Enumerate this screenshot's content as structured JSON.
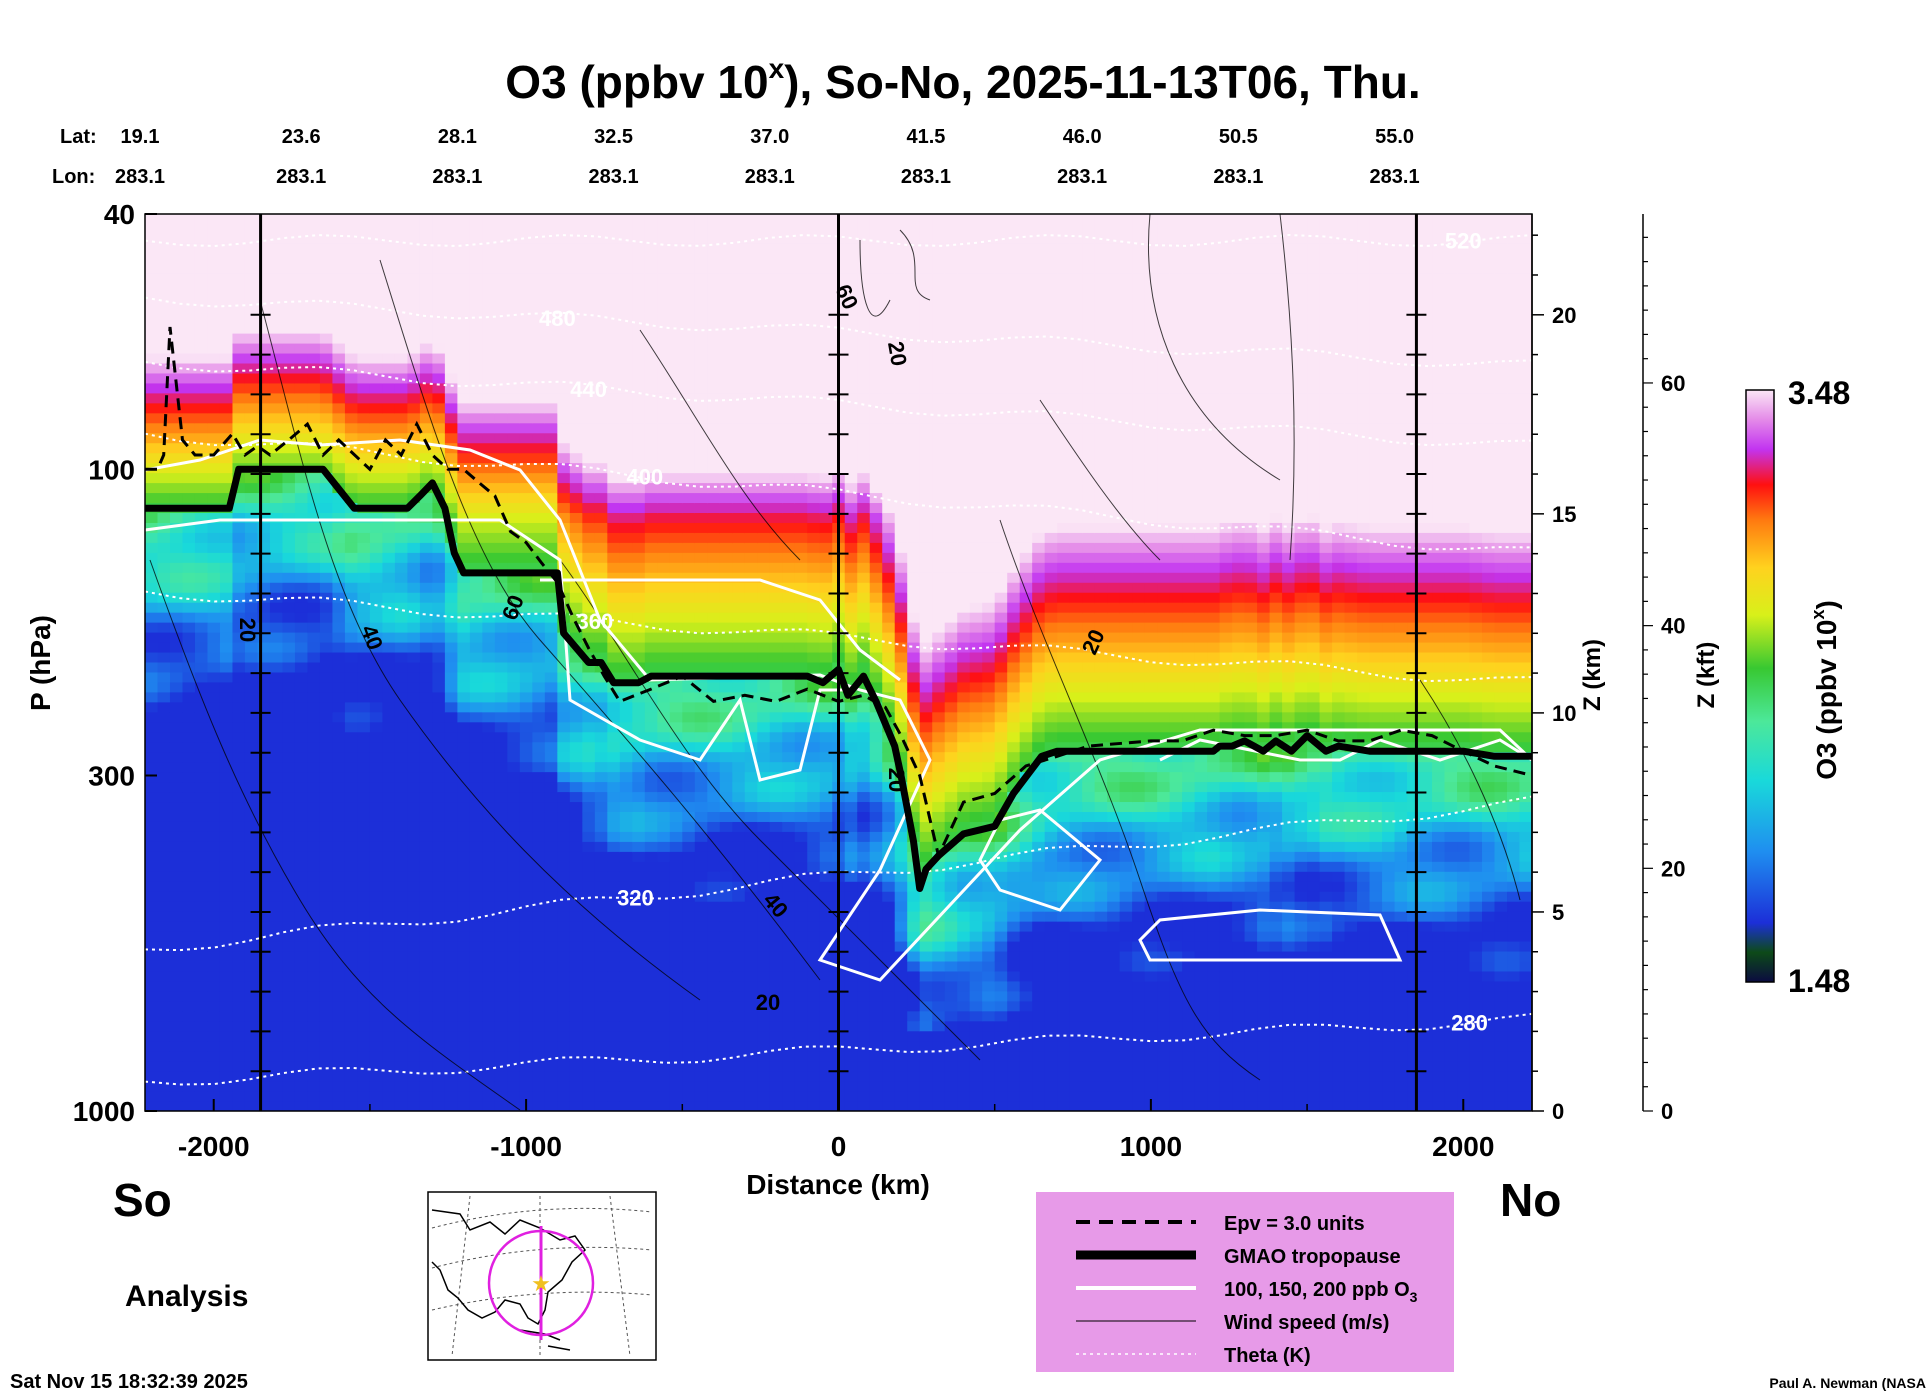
{
  "chart_data": {
    "type": "heatmap",
    "title_main": "O3 (ppbv 10",
    "title_sup": "x",
    "title_rest": "), So-No, 2025-11-13T06, Thu.",
    "xlabel": "Distance (km)",
    "ylabel": "P (hPa)",
    "ylabel_right_km": "Z (km)",
    "ylabel_right_kft": "Z (kft)",
    "xlim": [
      -2220,
      2220
    ],
    "ylim_hpa": [
      1000,
      40
    ],
    "x_ticks": [
      -2000,
      -1000,
      0,
      1000,
      2000
    ],
    "x_tick_labels": [
      "-2000",
      "-1000",
      "0",
      "1000",
      "2000"
    ],
    "p_ticks": [
      40,
      100,
      300,
      1000
    ],
    "p_tick_labels": [
      "40",
      "100",
      "300",
      "1000"
    ],
    "z_km_ticks": [
      0,
      5,
      10,
      15,
      20
    ],
    "z_km_tick_labels": [
      "0",
      "5",
      "10",
      "15",
      "20"
    ],
    "z_kft_ticks": [
      0,
      20,
      40,
      60
    ],
    "z_kft_tick_labels": [
      "0",
      "20",
      "40",
      "60"
    ],
    "lat_label": "Lat:",
    "lon_label": "Lon:",
    "lat_values": [
      "19.1",
      "23.6",
      "28.1",
      "32.5",
      "37.0",
      "41.5",
      "46.0",
      "50.5",
      "55.0"
    ],
    "lon_values": [
      "283.1",
      "283.1",
      "283.1",
      "283.1",
      "283.1",
      "283.1",
      "283.1",
      "283.1",
      "283.1"
    ],
    "lat_positions_km": [
      -2220,
      -1720,
      -1220,
      -720,
      -220,
      280,
      780,
      1280,
      1780
    ],
    "vertical_markers_km": [
      -1850,
      0,
      1850
    ],
    "colorbar": {
      "label": "O3 (ppbv 10",
      "label_sup": "x",
      "label_end": ")",
      "min_label": "1.48",
      "max_label": "3.48",
      "min": 1.48,
      "max": 3.48
    },
    "tropopause": {
      "name": "GMAO tropopause",
      "x": [
        -2220,
        -2000,
        -1950,
        -1920,
        -1850,
        -1800,
        -1650,
        -1550,
        -1500,
        -1380,
        -1340,
        -1300,
        -1260,
        -1230,
        -1200,
        -1150,
        -1100,
        -1000,
        -900,
        -880,
        -800,
        -760,
        -720,
        -680,
        -640,
        -600,
        -500,
        -400,
        -300,
        -200,
        -100,
        -50,
        0,
        30,
        80,
        120,
        180,
        200,
        240,
        260,
        280,
        320,
        400,
        500,
        560,
        650,
        700,
        800,
        900,
        1000,
        1100,
        1200,
        1220,
        1260,
        1300,
        1360,
        1400,
        1450,
        1500,
        1560,
        1600,
        1700,
        1800,
        1900,
        2000,
        2100,
        2220
      ],
      "y": [
        115,
        115,
        115,
        100,
        100,
        100,
        100,
        115,
        115,
        115,
        110,
        105,
        115,
        135,
        145,
        145,
        145,
        145,
        145,
        180,
        200,
        200,
        215,
        215,
        215,
        210,
        210,
        210,
        210,
        210,
        210,
        215,
        205,
        225,
        210,
        230,
        270,
        300,
        380,
        450,
        420,
        400,
        370,
        360,
        320,
        280,
        275,
        275,
        275,
        275,
        275,
        275,
        270,
        270,
        265,
        275,
        265,
        275,
        260,
        275,
        270,
        275,
        275,
        275,
        275,
        280,
        280
      ]
    },
    "epv_3_units": {
      "name": "Epv = 3.0 units",
      "x": [
        -2220,
        -2180,
        -2160,
        -2140,
        -2100,
        -2060,
        -2000,
        -1940,
        -1900,
        -1860,
        -1820,
        -1760,
        -1700,
        -1650,
        -1600,
        -1500,
        -1450,
        -1400,
        -1350,
        -1300,
        -1250,
        -1200,
        -1150,
        -1100,
        -1050,
        -1000,
        -950,
        -900,
        -850,
        -800,
        -750,
        -700,
        -600,
        -500,
        -400,
        -300,
        -200,
        -100,
        0,
        80,
        150,
        200,
        260,
        320,
        400,
        500,
        600,
        700,
        800,
        1000,
        1100,
        1200,
        1300,
        1400,
        1500,
        1600,
        1700,
        1800,
        1900,
        2000,
        2100,
        2220
      ],
      "y": [
        100,
        100,
        95,
        60,
        90,
        95,
        95,
        88,
        95,
        92,
        95,
        90,
        85,
        95,
        90,
        100,
        90,
        95,
        85,
        95,
        100,
        100,
        105,
        110,
        125,
        130,
        140,
        150,
        170,
        190,
        210,
        230,
        220,
        210,
        230,
        225,
        230,
        220,
        230,
        225,
        235,
        260,
        300,
        400,
        330,
        320,
        290,
        280,
        270,
        265,
        265,
        255,
        260,
        260,
        255,
        265,
        265,
        255,
        260,
        275,
        290,
        300
      ]
    },
    "series_legend": [
      {
        "key": "epv",
        "label": "Epv = 3.0 units"
      },
      {
        "key": "trop",
        "label": "GMAO tropopause"
      },
      {
        "key": "ozone",
        "label": "100, 150, 200 ppb O",
        "label_sub": "3"
      },
      {
        "key": "wind",
        "label": "Wind speed (m/s)"
      },
      {
        "key": "theta",
        "label": "Theta (K)"
      }
    ],
    "theta_contours": [
      {
        "value": 280,
        "left_hpa": 900,
        "right_hpa": 720,
        "label_pos_km": 2020
      },
      {
        "value": 320,
        "left_hpa": 560,
        "right_hpa": 330,
        "label_pos_km": -650
      },
      {
        "value": 360,
        "left_hpa": 155,
        "right_hpa": 215,
        "label_pos_km": -780
      },
      {
        "value": 400,
        "left_hpa": 88,
        "right_hpa": 135,
        "label_pos_km": -620
      },
      {
        "value": 440,
        "left_hpa": 68,
        "right_hpa": 92,
        "label_pos_km": -800
      },
      {
        "value": 480,
        "left_hpa": 54,
        "right_hpa": 69,
        "label_pos_km": -900
      },
      {
        "value": 520,
        "left_hpa": 44,
        "right_hpa": 44,
        "label_pos_km": 2000
      }
    ],
    "wind_labels": [
      "20",
      "40",
      "60",
      "20",
      "20",
      "60",
      "40",
      "20",
      "20"
    ]
  },
  "texts": {
    "south": "So",
    "north": "No",
    "analysis": "Analysis",
    "timestamp": "Sat Nov 15 18:32:39 2025",
    "credit": "Paul A. Newman (NASA"
  }
}
